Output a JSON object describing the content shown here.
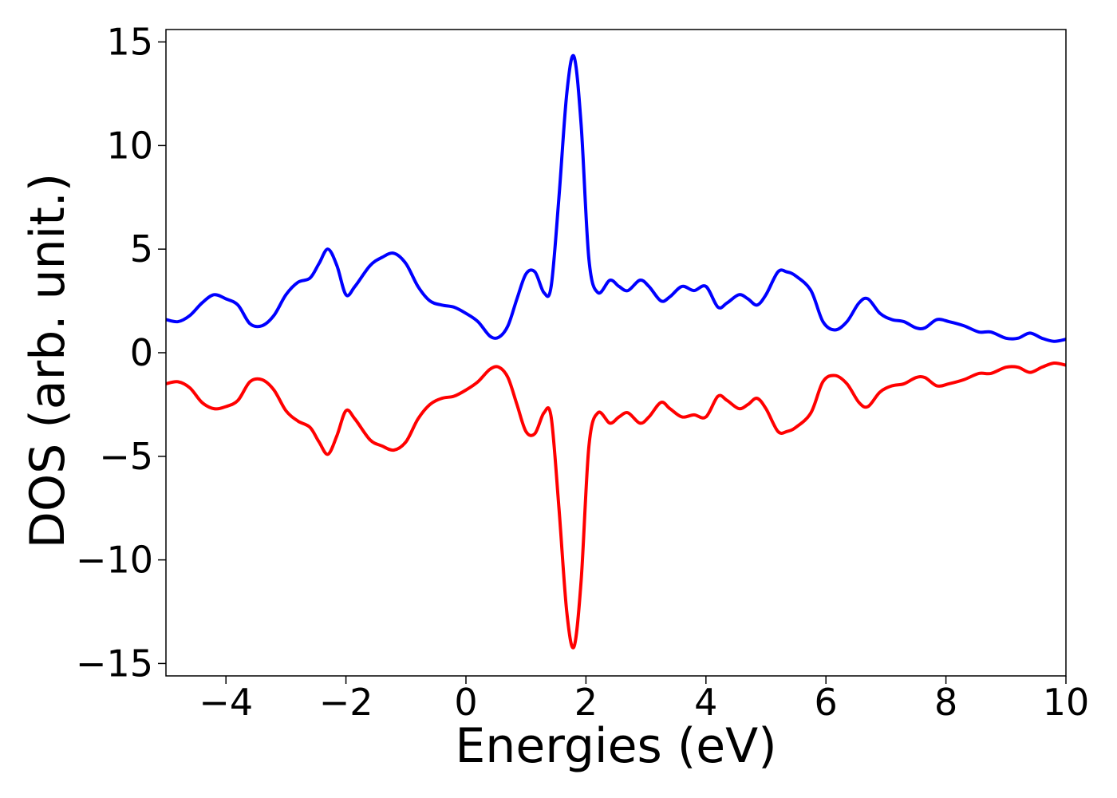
{
  "chart_data": {
    "type": "line",
    "title": "",
    "xlabel": "Energies (eV)",
    "ylabel": "DOS (arb. unit.)",
    "xlim": [
      -5,
      10
    ],
    "ylim": [
      -15.6,
      15.6
    ],
    "grid": false,
    "legend": "none",
    "x_ticks": [
      -4,
      -2,
      0,
      2,
      4,
      6,
      8,
      10
    ],
    "x_tick_labels": [
      "−4",
      "−2",
      "0",
      "2",
      "4",
      "6",
      "8",
      "10"
    ],
    "y_ticks": [
      -15,
      -10,
      -5,
      0,
      5,
      10,
      15
    ],
    "y_tick_labels": [
      "−15",
      "−10",
      "−5",
      "0",
      "5",
      "10",
      "15"
    ],
    "series": [
      {
        "color": "#0000ff",
        "x": [
          -5.0,
          -4.8,
          -4.6,
          -4.4,
          -4.2,
          -4.0,
          -3.8,
          -3.6,
          -3.4,
          -3.2,
          -3.0,
          -2.8,
          -2.6,
          -2.45,
          -2.3,
          -2.15,
          -2.0,
          -1.85,
          -1.6,
          -1.4,
          -1.2,
          -1.0,
          -0.8,
          -0.6,
          -0.4,
          -0.2,
          0.0,
          0.2,
          0.4,
          0.55,
          0.7,
          0.85,
          1.0,
          1.15,
          1.3,
          1.42,
          1.55,
          1.68,
          1.8,
          1.92,
          2.05,
          2.2,
          2.4,
          2.55,
          2.7,
          2.9,
          3.05,
          3.25,
          3.4,
          3.6,
          3.8,
          4.0,
          4.2,
          4.35,
          4.55,
          4.7,
          4.85,
          5.0,
          5.2,
          5.35,
          5.5,
          5.75,
          5.95,
          6.15,
          6.35,
          6.55,
          6.7,
          6.9,
          7.1,
          7.3,
          7.5,
          7.65,
          7.85,
          8.05,
          8.3,
          8.55,
          8.75,
          9.0,
          9.2,
          9.4,
          9.6,
          9.8,
          10.0
        ],
        "y": [
          1.6,
          1.5,
          1.8,
          2.4,
          2.8,
          2.6,
          2.3,
          1.4,
          1.3,
          1.8,
          2.8,
          3.4,
          3.6,
          4.3,
          5.0,
          4.2,
          2.8,
          3.2,
          4.2,
          4.6,
          4.8,
          4.3,
          3.2,
          2.5,
          2.3,
          2.2,
          1.9,
          1.5,
          0.8,
          0.75,
          1.3,
          2.6,
          3.8,
          3.9,
          2.9,
          3.2,
          7.5,
          12.5,
          14.3,
          11.0,
          4.5,
          2.9,
          3.5,
          3.2,
          3.0,
          3.5,
          3.2,
          2.5,
          2.7,
          3.2,
          3.0,
          3.2,
          2.2,
          2.4,
          2.8,
          2.6,
          2.3,
          2.8,
          3.9,
          3.9,
          3.7,
          3.0,
          1.5,
          1.1,
          1.5,
          2.4,
          2.6,
          1.9,
          1.6,
          1.5,
          1.2,
          1.2,
          1.6,
          1.5,
          1.3,
          1.0,
          1.0,
          0.7,
          0.7,
          0.95,
          0.7,
          0.55,
          0.65
        ]
      },
      {
        "color": "#ff0000",
        "x": [
          -5.0,
          -4.8,
          -4.6,
          -4.4,
          -4.2,
          -4.0,
          -3.8,
          -3.6,
          -3.4,
          -3.2,
          -3.0,
          -2.8,
          -2.6,
          -2.45,
          -2.3,
          -2.15,
          -2.0,
          -1.85,
          -1.6,
          -1.4,
          -1.2,
          -1.0,
          -0.8,
          -0.6,
          -0.4,
          -0.2,
          0.0,
          0.2,
          0.4,
          0.55,
          0.7,
          0.85,
          1.0,
          1.15,
          1.3,
          1.42,
          1.55,
          1.68,
          1.8,
          1.92,
          2.05,
          2.2,
          2.4,
          2.55,
          2.7,
          2.9,
          3.05,
          3.25,
          3.4,
          3.6,
          3.8,
          4.0,
          4.2,
          4.35,
          4.55,
          4.7,
          4.85,
          5.0,
          5.2,
          5.35,
          5.5,
          5.75,
          5.95,
          6.15,
          6.35,
          6.55,
          6.7,
          6.9,
          7.1,
          7.3,
          7.5,
          7.65,
          7.85,
          8.05,
          8.3,
          8.55,
          8.75,
          9.0,
          9.2,
          9.4,
          9.6,
          9.8,
          10.0
        ],
        "y": [
          -1.5,
          -1.4,
          -1.7,
          -2.4,
          -2.7,
          -2.6,
          -2.3,
          -1.4,
          -1.3,
          -1.8,
          -2.8,
          -3.3,
          -3.6,
          -4.3,
          -4.9,
          -4.0,
          -2.8,
          -3.2,
          -4.2,
          -4.5,
          -4.7,
          -4.3,
          -3.2,
          -2.5,
          -2.2,
          -2.1,
          -1.8,
          -1.4,
          -0.8,
          -0.7,
          -1.2,
          -2.5,
          -3.8,
          -3.9,
          -2.9,
          -3.1,
          -7.5,
          -12.5,
          -14.2,
          -11.0,
          -4.5,
          -2.9,
          -3.4,
          -3.1,
          -2.9,
          -3.4,
          -3.1,
          -2.4,
          -2.7,
          -3.1,
          -3.0,
          -3.1,
          -2.1,
          -2.3,
          -2.7,
          -2.5,
          -2.2,
          -2.7,
          -3.8,
          -3.8,
          -3.6,
          -2.9,
          -1.4,
          -1.1,
          -1.5,
          -2.4,
          -2.6,
          -1.9,
          -1.6,
          -1.5,
          -1.2,
          -1.2,
          -1.6,
          -1.5,
          -1.3,
          -1.0,
          -1.0,
          -0.7,
          -0.7,
          -0.95,
          -0.7,
          -0.5,
          -0.6
        ]
      }
    ]
  }
}
